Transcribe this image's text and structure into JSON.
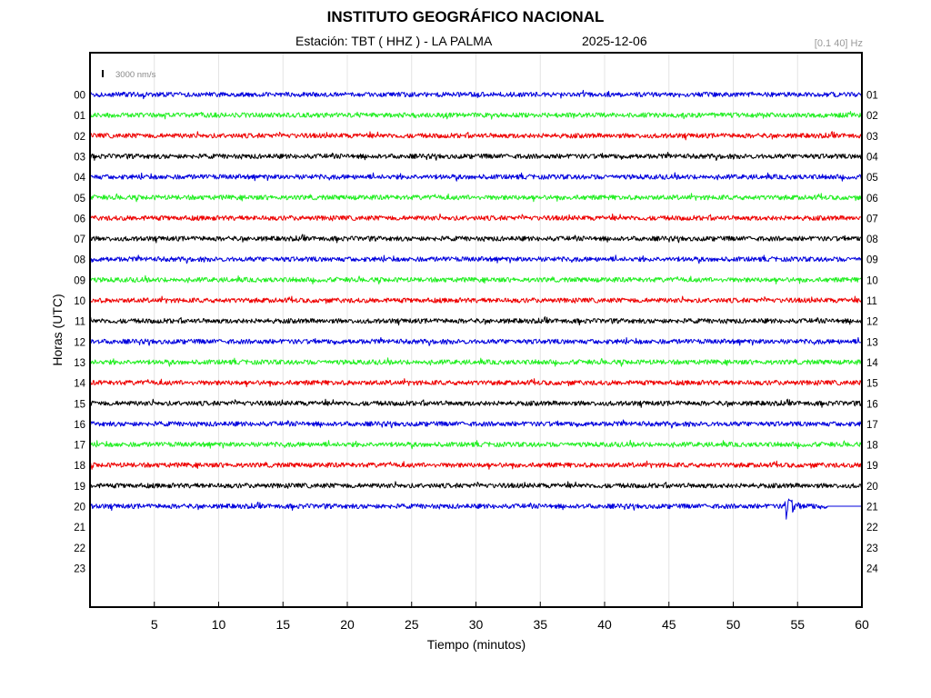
{
  "header": {
    "title": "INSTITUTO GEOGRÁFICO NACIONAL",
    "station": "Estación:  TBT ( HHZ ) - LA PALMA",
    "date": "2025-12-06",
    "filter": "[0.1 40] Hz"
  },
  "scale_label": "3000 nm/s",
  "colors": {
    "blue": "#0000dd",
    "green": "#22ee22",
    "red": "#ee0000",
    "black": "#000000",
    "scale": "#dd0000"
  },
  "chart_data": {
    "type": "line",
    "xlabel": "Tiempo (minutos)",
    "ylabel": "Horas (UTC)",
    "xlim": [
      0,
      60
    ],
    "x_ticks": [
      5,
      10,
      15,
      20,
      25,
      30,
      35,
      40,
      45,
      50,
      55,
      60
    ],
    "grid": true,
    "left_tick_labels": [
      "00",
      "01",
      "02",
      "03",
      "04",
      "05",
      "06",
      "07",
      "08",
      "09",
      "10",
      "11",
      "12",
      "13",
      "14",
      "15",
      "16",
      "17",
      "18",
      "19",
      "20",
      "21",
      "22",
      "23"
    ],
    "right_tick_labels": [
      "01",
      "02",
      "03",
      "04",
      "05",
      "06",
      "07",
      "08",
      "09",
      "10",
      "11",
      "12",
      "13",
      "14",
      "15",
      "16",
      "17",
      "18",
      "19",
      "20",
      "21",
      "22",
      "23",
      "24"
    ],
    "color_cycle": [
      "blue",
      "green",
      "red",
      "black"
    ],
    "recorded_hours": 21,
    "last_trace_end_minute": 60,
    "event": {
      "hour": 20,
      "start_minute": 54.0,
      "end_minute": 57.3
    }
  }
}
